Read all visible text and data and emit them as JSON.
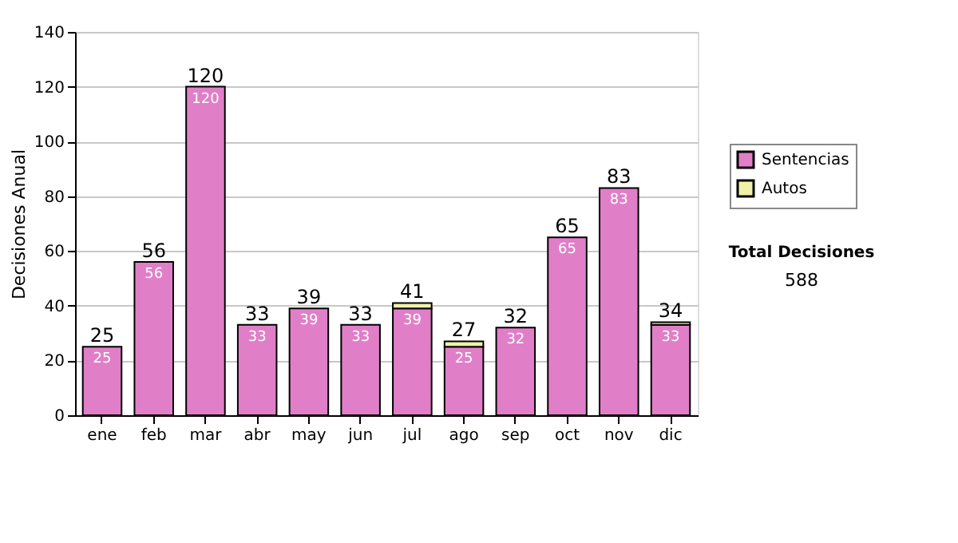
{
  "chart_data": {
    "type": "bar",
    "stacked": true,
    "ylabel": "Decisiones Anual",
    "categories": [
      "ene",
      "feb",
      "mar",
      "abr",
      "may",
      "jun",
      "jul",
      "ago",
      "sep",
      "oct",
      "nov",
      "dic"
    ],
    "series": [
      {
        "name": "Sentencias",
        "color": "#e07fc8",
        "values": [
          25,
          56,
          120,
          33,
          39,
          33,
          39,
          25,
          32,
          65,
          83,
          33
        ],
        "value_labels": [
          "25",
          "56",
          "120",
          "33",
          "39",
          "33",
          "39",
          "25",
          "32",
          "65",
          "83",
          "33"
        ]
      },
      {
        "name": "Autos",
        "color": "#f0f0a8",
        "values": [
          null,
          null,
          null,
          null,
          null,
          null,
          2,
          2,
          null,
          null,
          null,
          1
        ]
      }
    ],
    "totals": [
      "25",
      "56",
      "120",
      "33",
      "39",
      "33",
      "41",
      "27",
      "32",
      "65",
      "83",
      "34"
    ],
    "ylim": [
      0,
      140
    ],
    "yticks": [
      0,
      20,
      40,
      60,
      80,
      100,
      120,
      140
    ],
    "grid": "y",
    "legend": "right",
    "annotations": [
      "Total Decisiones",
      "588"
    ]
  }
}
